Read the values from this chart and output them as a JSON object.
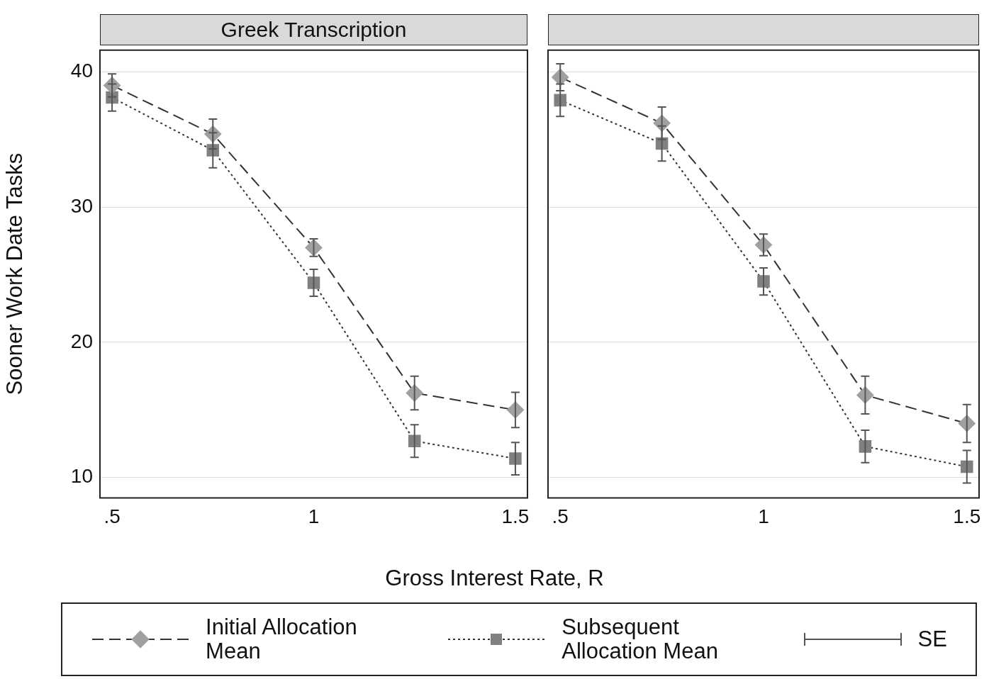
{
  "chart_data": [
    {
      "type": "line",
      "title": "Greek Transcription",
      "ylabel": "Sooner Work Date Tasks",
      "xlabel": "Gross Interest Rate, R",
      "x": [
        0.5,
        0.75,
        1,
        1.25,
        1.5
      ],
      "xlim": [
        0.47,
        1.53
      ],
      "xticks": [
        {
          "value": 0.5,
          "label": ".5"
        },
        {
          "value": 1,
          "label": "1"
        },
        {
          "value": 1.5,
          "label": "1.5"
        }
      ],
      "ylim": [
        8.5,
        41.6
      ],
      "yticks": [
        10,
        20,
        30,
        40
      ],
      "grid": "y",
      "legend": "bottom",
      "annotations": [
        "SE"
      ],
      "series": [
        {
          "name": "Initial Allocation Mean",
          "color": "#a0a0a0",
          "marker": "diamond",
          "line_style": "dashed",
          "values": [
            39.0,
            35.4,
            27.0,
            16.25,
            15.0
          ],
          "errors": [
            0.85,
            1.1,
            0.65,
            1.25,
            1.3
          ]
        },
        {
          "name": "Subsequent Allocation Mean",
          "color": "#808080",
          "marker": "square",
          "line_style": "dotted",
          "values": [
            38.1,
            34.2,
            24.4,
            12.7,
            11.4
          ],
          "errors": [
            1.0,
            1.3,
            1.0,
            1.2,
            1.2
          ]
        }
      ]
    },
    {
      "type": "line",
      "x": [
        0.5,
        0.75,
        1,
        1.25,
        1.5
      ],
      "xlim": [
        0.47,
        1.53
      ],
      "xticks": [
        {
          "value": 0.5,
          "label": ".5"
        },
        {
          "value": 1,
          "label": "1"
        },
        {
          "value": 1.5,
          "label": "1.5"
        }
      ],
      "ylim": [
        8.5,
        41.6
      ],
      "yticks": [
        10,
        20,
        30,
        40
      ],
      "grid": "y",
      "tick_labels": "x",
      "series": [
        {
          "color": "#a0a0a0",
          "marker": "diamond",
          "line_style": "dashed",
          "values": [
            39.6,
            36.2,
            27.2,
            16.1,
            14.0
          ],
          "errors": [
            1.0,
            1.2,
            0.8,
            1.4,
            1.4
          ]
        },
        {
          "color": "#808080",
          "marker": "square",
          "line_style": "dotted",
          "values": [
            37.9,
            34.7,
            24.5,
            12.3,
            10.8
          ],
          "errors": [
            1.2,
            1.3,
            1.0,
            1.2,
            1.2
          ]
        }
      ]
    }
  ]
}
